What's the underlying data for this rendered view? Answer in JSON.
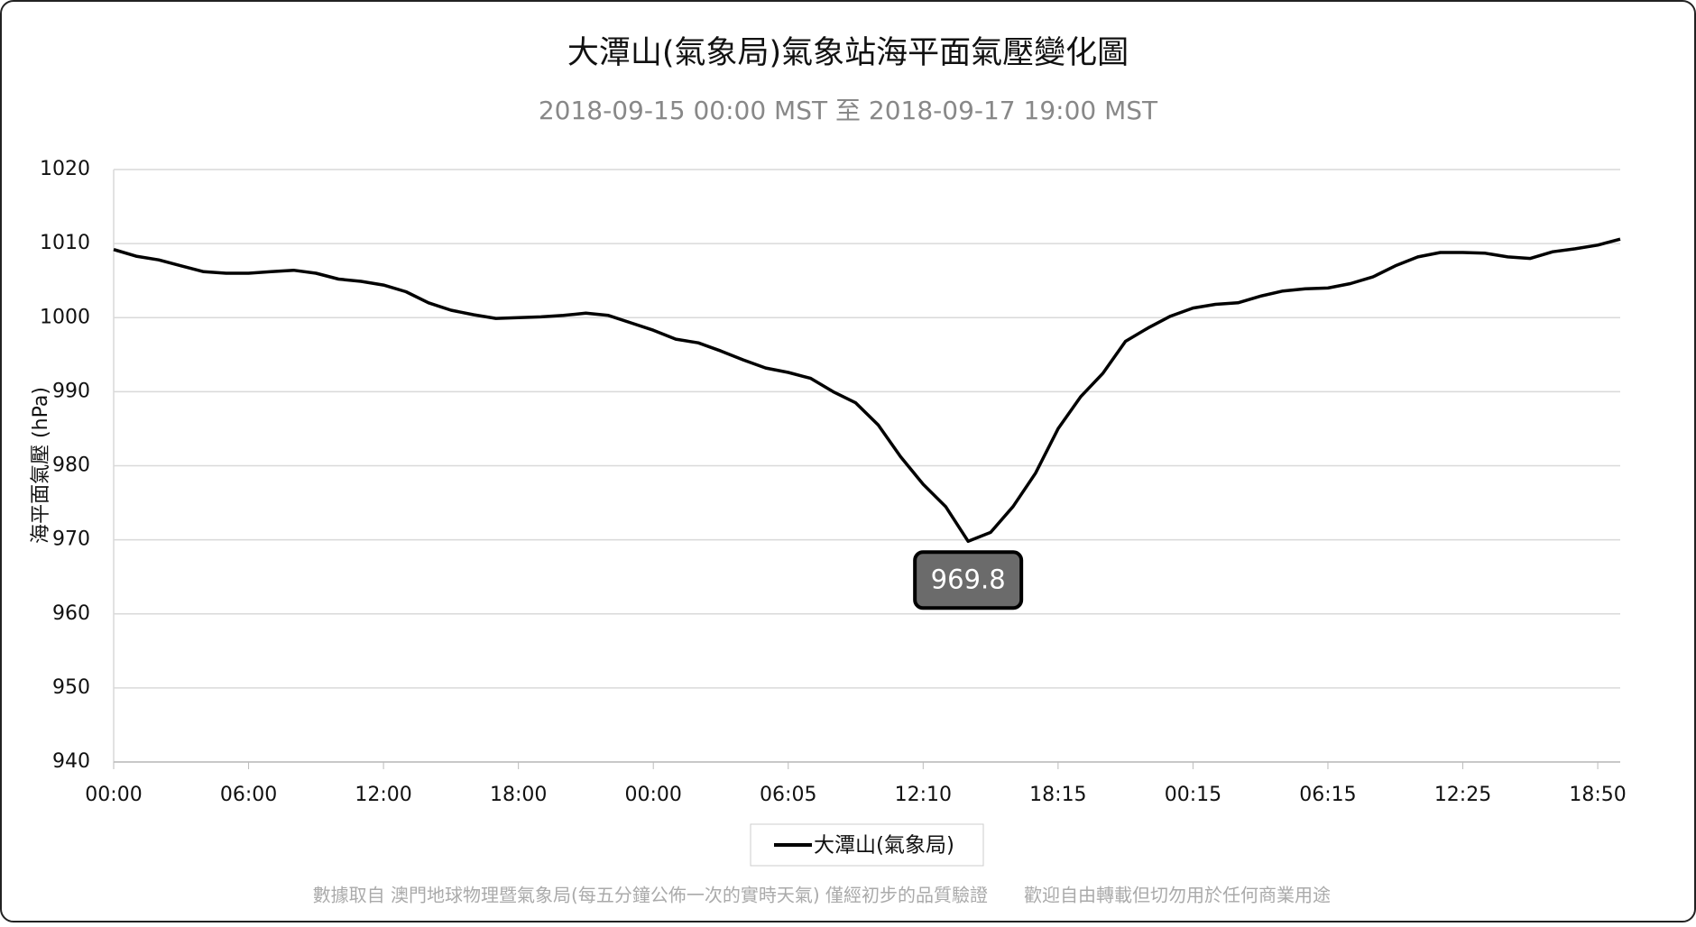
{
  "chart_data": {
    "type": "line",
    "title": "大潭山(氣象局)氣象站海平面氣壓變化圖",
    "subtitle": "2018-09-15 00:00 MST 至 2018-09-17 19:00 MST",
    "y_label": "海平面氣壓 (hPa)",
    "categories": [
      "00:00",
      null,
      null,
      null,
      null,
      null,
      "06:00",
      null,
      null,
      null,
      null,
      null,
      "12:00",
      null,
      null,
      null,
      null,
      null,
      "18:00",
      null,
      null,
      null,
      null,
      null,
      "00:00",
      null,
      null,
      null,
      null,
      null,
      "06:05",
      null,
      null,
      null,
      null,
      null,
      "12:10",
      null,
      null,
      null,
      null,
      null,
      "18:15",
      null,
      null,
      null,
      null,
      null,
      "00:15",
      null,
      null,
      null,
      null,
      null,
      "06:15",
      null,
      null,
      null,
      null,
      null,
      "12:25",
      null,
      null,
      null,
      null,
      null,
      "18:50",
      null
    ],
    "series": [
      {
        "name": "大潭山(氣象局)",
        "color": "#000000",
        "values": [
          1009.2,
          1008.3,
          1007.8,
          1007.0,
          1006.2,
          1006.0,
          1006.0,
          1006.2,
          1006.4,
          1006.0,
          1005.2,
          1004.9,
          1004.4,
          1003.5,
          1002.0,
          1001.0,
          1000.4,
          999.9,
          1000.0,
          1000.1,
          1000.3,
          1000.6,
          1000.3,
          999.3,
          998.3,
          997.1,
          996.6,
          995.5,
          994.3,
          993.2,
          992.6,
          991.8,
          990.0,
          988.5,
          985.5,
          981.2,
          977.5,
          974.5,
          969.8,
          971.0,
          974.5,
          979.0,
          985.0,
          989.3,
          992.5,
          996.8,
          998.6,
          1000.2,
          1001.3,
          1001.8,
          1002.0,
          1002.9,
          1003.6,
          1003.9,
          1004.0,
          1004.6,
          1005.5,
          1007.0,
          1008.2,
          1008.8,
          1008.8,
          1008.7,
          1008.2,
          1008.0,
          1008.9,
          1009.3,
          1009.8,
          1010.6
        ]
      }
    ],
    "annotation": {
      "value": 969.8
    },
    "ylim": [
      940,
      1020
    ],
    "yticks": [
      940,
      950,
      960,
      970,
      980,
      990,
      1000,
      1010,
      1020
    ],
    "grid": true,
    "legend": "bottom",
    "footer": [
      "數據取自 澳門地球物理暨氣象局(每五分鐘公佈一次的實時天氣) 僅經初步的品質驗證",
      "歡迎自由轉載但切勿用於任何商業用途"
    ]
  }
}
